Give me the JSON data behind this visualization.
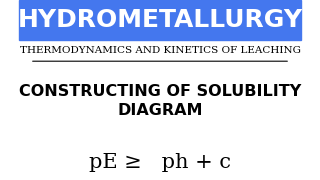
{
  "title": "HYDROMETALLURGY",
  "subtitle": "THERMODYNAMICS AND KINETICS OF LEACHING",
  "heading": "CONSTRUCTING OF SOLUBILITY\nDIAGRAM",
  "formula": "pE ≥   ph + c",
  "title_bg": "#4477ee",
  "title_color": "#ffffff",
  "bg_color": "#ffffff",
  "subtitle_color": "#000000",
  "heading_color": "#000000",
  "formula_color": "#000000",
  "title_fontsize": 18,
  "subtitle_fontsize": 7.5,
  "heading_fontsize": 11.5,
  "formula_fontsize": 15
}
